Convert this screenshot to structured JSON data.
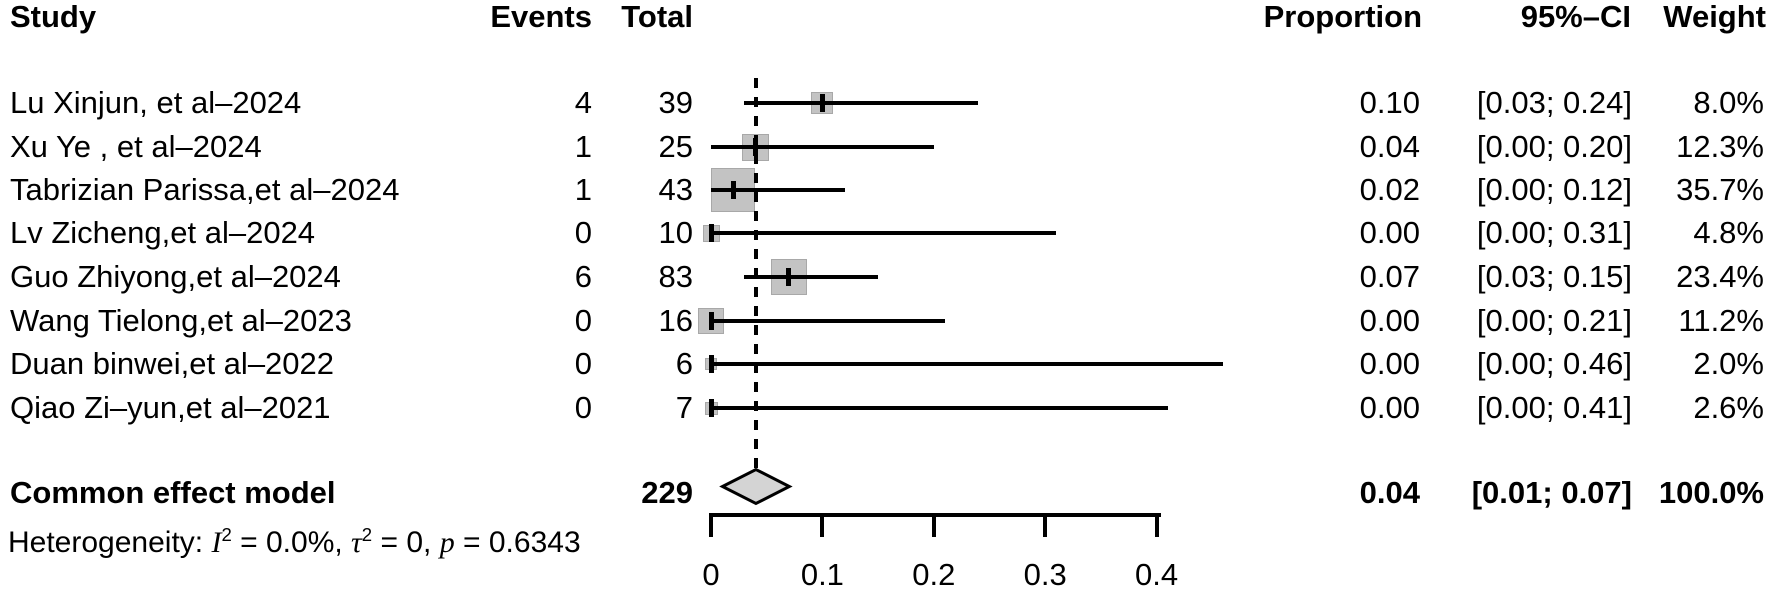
{
  "columns": {
    "study": "Study",
    "events": "Events",
    "total": "Total",
    "proportion": "Proportion",
    "ci": "95%–CI",
    "weight": "Weight"
  },
  "heterogeneity": {
    "prefix": "Heterogeneity: ",
    "i_sym": "I",
    "i_exp": "2",
    "i_rest": " = 0.0%, ",
    "tau_sym": "τ",
    "tau_exp": "2",
    "tau_rest": " = 0, ",
    "p_sym": "p",
    "p_rest": " = 0.6343"
  },
  "colors": {
    "square_fill": "#c3c3c3",
    "square_border": "#a8a8a8",
    "diamond_fill": "#d4d4d4",
    "line": "#000000",
    "text": "#000000",
    "background": "#ffffff"
  },
  "chart_data": {
    "type": "forest",
    "xlabel": "",
    "ylabel": "",
    "xlim": [
      0,
      0.4
    ],
    "grid": false,
    "pooled_reference_value": 0.04,
    "axis_ticks": [
      {
        "value": 0,
        "label": "0"
      },
      {
        "value": 0.1,
        "label": "0.1"
      },
      {
        "value": 0.2,
        "label": "0.2"
      },
      {
        "value": 0.3,
        "label": "0.3"
      },
      {
        "value": 0.4,
        "label": "0.4"
      }
    ],
    "rows": [
      {
        "study": "Lu Xinjun, et al–2024",
        "events": "4",
        "total": "39",
        "proportion": 0.1,
        "proportion_text": "0.10",
        "ci_low": 0.03,
        "ci_high": 0.24,
        "ci_text": "[0.03; 0.24]",
        "weight": 8.0,
        "weight_text": "8.0%"
      },
      {
        "study": "Xu Ye , et al–2024",
        "events": "1",
        "total": "25",
        "proportion": 0.04,
        "proportion_text": "0.04",
        "ci_low": 0.0,
        "ci_high": 0.2,
        "ci_text": "[0.00; 0.20]",
        "weight": 12.3,
        "weight_text": "12.3%"
      },
      {
        "study": "Tabrizian Parissa,et al–2024",
        "events": "1",
        "total": "43",
        "proportion": 0.02,
        "proportion_text": "0.02",
        "ci_low": 0.0,
        "ci_high": 0.12,
        "ci_text": "[0.00; 0.12]",
        "weight": 35.7,
        "weight_text": "35.7%"
      },
      {
        "study": "Lv Zicheng,et al–2024",
        "events": "0",
        "total": "10",
        "proportion": 0.0,
        "proportion_text": "0.00",
        "ci_low": 0.0,
        "ci_high": 0.31,
        "ci_text": "[0.00; 0.31]",
        "weight": 4.8,
        "weight_text": "4.8%"
      },
      {
        "study": "Guo Zhiyong,et al–2024",
        "events": "6",
        "total": "83",
        "proportion": 0.07,
        "proportion_text": "0.07",
        "ci_low": 0.03,
        "ci_high": 0.15,
        "ci_text": "[0.03; 0.15]",
        "weight": 23.4,
        "weight_text": "23.4%"
      },
      {
        "study": "Wang Tielong,et al–2023",
        "events": "0",
        "total": "16",
        "proportion": 0.0,
        "proportion_text": "0.00",
        "ci_low": 0.0,
        "ci_high": 0.21,
        "ci_text": "[0.00; 0.21]",
        "weight": 11.2,
        "weight_text": "11.2%"
      },
      {
        "study": "Duan binwei,et al–2022",
        "events": "0",
        "total": "6",
        "proportion": 0.0,
        "proportion_text": "0.00",
        "ci_low": 0.0,
        "ci_high": 0.46,
        "ci_text": "[0.00; 0.46]",
        "weight": 2.0,
        "weight_text": "2.0%"
      },
      {
        "study": "Qiao Zi–yun,et al–2021",
        "events": "0",
        "total": "7",
        "proportion": 0.0,
        "proportion_text": "0.00",
        "ci_low": 0.0,
        "ci_high": 0.41,
        "ci_text": "[0.00; 0.41]",
        "weight": 2.6,
        "weight_text": "2.6%"
      }
    ],
    "summary": {
      "label": "Common effect model",
      "total": "229",
      "proportion": 0.04,
      "proportion_text": "0.04",
      "ci_low": 0.01,
      "ci_high": 0.07,
      "ci_text": "[0.01; 0.07]",
      "weight_text": "100.0%"
    }
  }
}
